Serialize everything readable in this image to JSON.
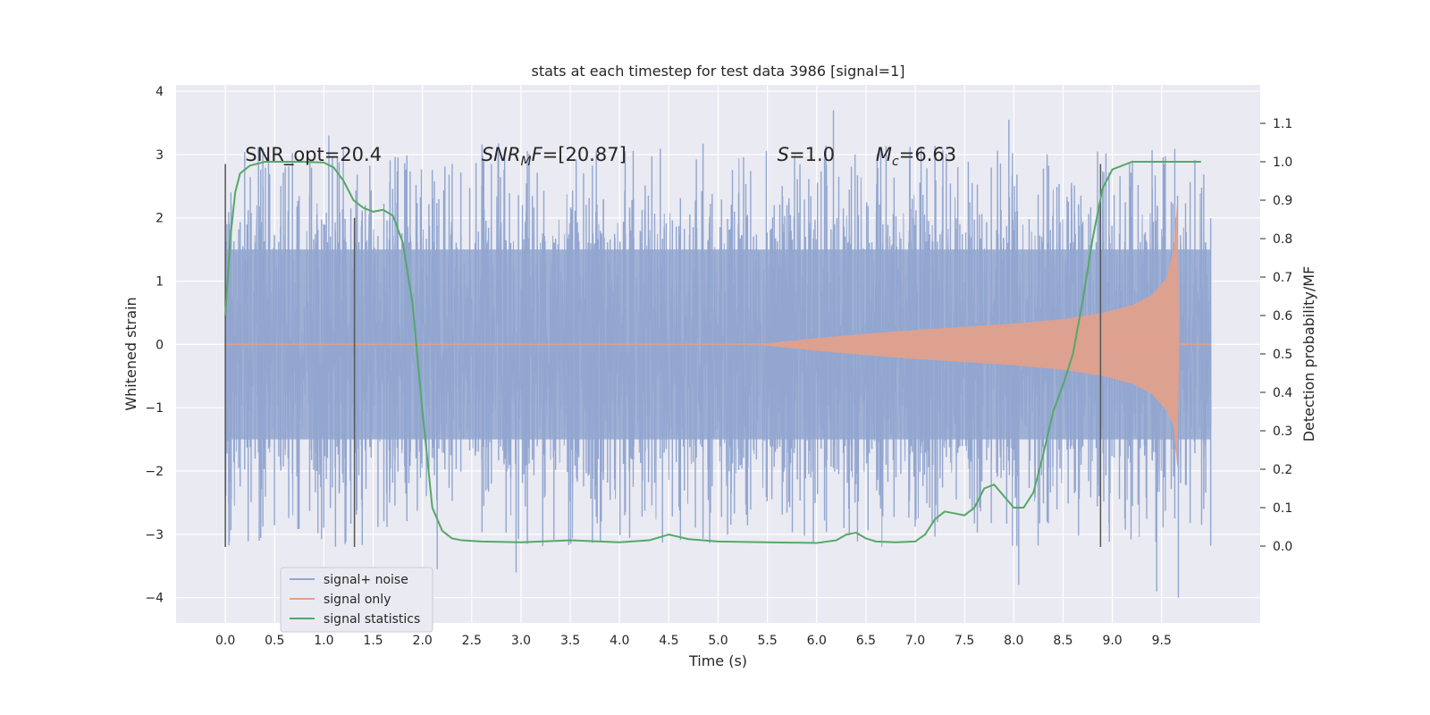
{
  "chart_data": {
    "type": "line",
    "title": "stats at each timestep for test data 3986 [signal=1]",
    "xlabel": "Time (s)",
    "ylabel": "Whitened strain",
    "ylabel_right": "Detection probability/MF",
    "xlim": [
      -0.5,
      10.5
    ],
    "ylim": [
      -4.4,
      4.1
    ],
    "ylim_right": [
      -0.2,
      1.2
    ],
    "xticks": [
      "0.0",
      "0.5",
      "1.0",
      "1.5",
      "2.0",
      "2.5",
      "3.0",
      "3.5",
      "4.0",
      "4.5",
      "5.0",
      "5.5",
      "6.0",
      "6.5",
      "7.0",
      "7.5",
      "8.0",
      "8.5",
      "9.0",
      "9.5"
    ],
    "yticks": [
      "4",
      "3",
      "2",
      "1",
      "0",
      "−1",
      "−2",
      "−3",
      "−4"
    ],
    "yticks_right": [
      "1.1",
      "1.0",
      "0.9",
      "0.8",
      "0.7",
      "0.6",
      "0.5",
      "0.4",
      "0.3",
      "0.2",
      "0.1",
      "0.0"
    ],
    "grid": true,
    "legend_position": "lower-left",
    "annotations": [
      {
        "text": "SNR_opt=20.4",
        "x": 0.2,
        "y": 2.9
      },
      {
        "text": "SNR_MF=[20.87]",
        "x": 2.6,
        "y": 2.9
      },
      {
        "text": "S=1.0",
        "x": 5.6,
        "y": 2.9
      },
      {
        "text": "M_c=6.63",
        "x": 6.6,
        "y": 2.9
      }
    ],
    "vlines": [
      {
        "x": 0.0,
        "y_range": [
          -3.2,
          2.85
        ]
      },
      {
        "x": 1.31,
        "y_range": [
          -3.2,
          2.0
        ]
      },
      {
        "x": 8.88,
        "y_range": [
          -3.2,
          2.85
        ]
      }
    ],
    "series": [
      {
        "name": "signal+ noise",
        "color": "#92a6d0",
        "kind": "noise-band",
        "x_range": [
          0.0,
          10.0
        ],
        "typical_amplitude": 1.5,
        "peak_extremes": [
          3.7,
          -4.0
        ]
      },
      {
        "name": "signal only",
        "color": "#e0a08c",
        "kind": "chirp-envelope",
        "envelope": {
          "x": [
            0.0,
            5.0,
            5.5,
            6.0,
            6.5,
            7.0,
            7.5,
            8.0,
            8.5,
            8.9,
            9.2,
            9.4,
            9.55,
            9.62,
            9.66,
            9.68,
            9.72,
            9.8,
            10.0
          ],
          "y": [
            0.0,
            0.0,
            0.02,
            0.1,
            0.17,
            0.23,
            0.28,
            0.33,
            0.4,
            0.5,
            0.62,
            0.78,
            1.05,
            1.5,
            2.3,
            0.0,
            0.02,
            0.0,
            0.0
          ]
        }
      },
      {
        "name": "signal statistics",
        "color": "#55a868",
        "kind": "line",
        "axis": "right",
        "x": [
          0.0,
          0.05,
          0.1,
          0.15,
          0.25,
          0.4,
          0.6,
          0.8,
          1.0,
          1.1,
          1.2,
          1.3,
          1.4,
          1.5,
          1.6,
          1.7,
          1.8,
          1.9,
          2.0,
          2.1,
          2.2,
          2.3,
          2.4,
          2.6,
          3.0,
          3.5,
          4.0,
          4.3,
          4.5,
          4.7,
          5.0,
          5.5,
          6.0,
          6.2,
          6.3,
          6.4,
          6.5,
          6.6,
          6.8,
          7.0,
          7.1,
          7.2,
          7.3,
          7.4,
          7.5,
          7.6,
          7.7,
          7.8,
          7.9,
          8.0,
          8.1,
          8.2,
          8.3,
          8.4,
          8.5,
          8.6,
          8.7,
          8.8,
          8.9,
          9.0,
          9.1,
          9.2,
          9.5,
          9.9
        ],
        "y": [
          0.6,
          0.8,
          0.92,
          0.97,
          0.99,
          1.0,
          1.0,
          1.0,
          0.998,
          0.985,
          0.95,
          0.9,
          0.88,
          0.87,
          0.875,
          0.86,
          0.79,
          0.63,
          0.35,
          0.1,
          0.04,
          0.02,
          0.015,
          0.012,
          0.01,
          0.015,
          0.01,
          0.015,
          0.03,
          0.018,
          0.012,
          0.01,
          0.008,
          0.015,
          0.03,
          0.035,
          0.02,
          0.012,
          0.01,
          0.012,
          0.03,
          0.07,
          0.09,
          0.085,
          0.08,
          0.1,
          0.15,
          0.16,
          0.13,
          0.1,
          0.1,
          0.14,
          0.24,
          0.35,
          0.42,
          0.5,
          0.64,
          0.8,
          0.93,
          0.98,
          0.99,
          1.0,
          1.0,
          1.0
        ]
      }
    ]
  }
}
